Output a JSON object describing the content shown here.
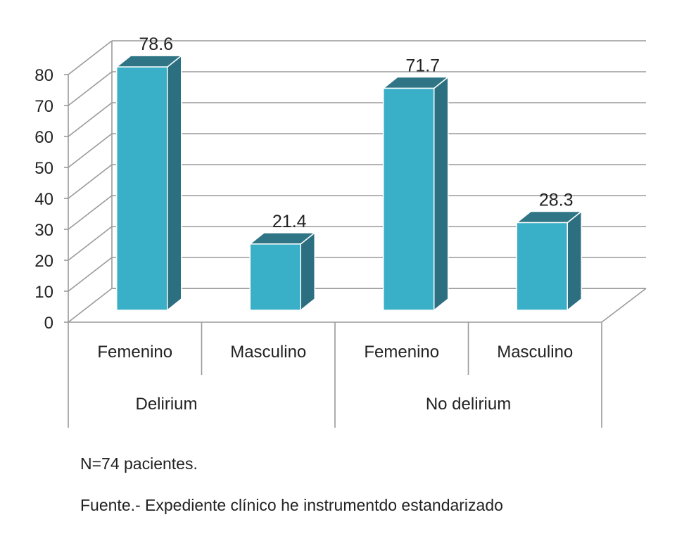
{
  "chart_data": {
    "type": "bar",
    "groups": [
      "Delirium",
      "No delirium"
    ],
    "categories": [
      "Femenino",
      "Masculino",
      "Femenino",
      "Masculino"
    ],
    "values": [
      78.6,
      21.4,
      71.7,
      28.3
    ],
    "value_labels": [
      "78.6",
      "21.4",
      "71.7",
      "28.3"
    ],
    "yticks": [
      "0",
      "10",
      "20",
      "30",
      "40",
      "50",
      "60",
      "70",
      "80"
    ],
    "ylim": [
      0,
      80
    ],
    "grid": true,
    "style": "3d-columns",
    "colors": {
      "front": "#3aafc8",
      "side": "#2c6f80",
      "top": "#2f7585",
      "grid": "#9a9a9a"
    }
  },
  "notes": {
    "sample": "N=74 pacientes.",
    "source": "Fuente.- Expediente clínico he instrumentdo  estandarizado"
  }
}
